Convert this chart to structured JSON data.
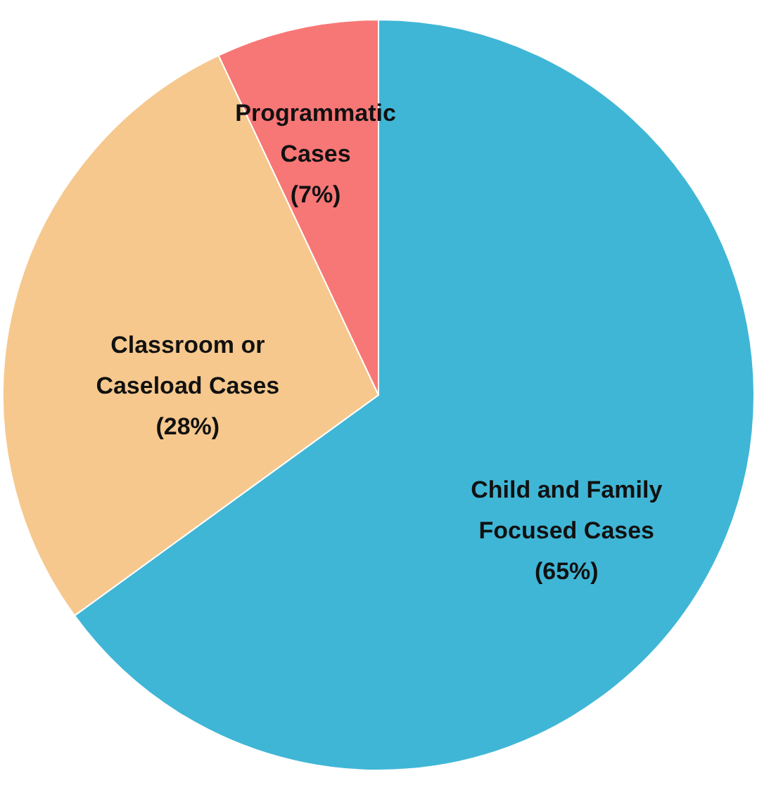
{
  "chart_data": {
    "type": "pie",
    "categories": [
      "Child and Family Focused Cases",
      "Classroom or Caseload Cases",
      "Programmatic Cases"
    ],
    "values": [
      65,
      28,
      7
    ],
    "colors": [
      "#40b6d6",
      "#f6c88d",
      "#f77776"
    ],
    "value_labels": [
      "(65%)",
      "(28%)",
      "(7%)"
    ]
  }
}
